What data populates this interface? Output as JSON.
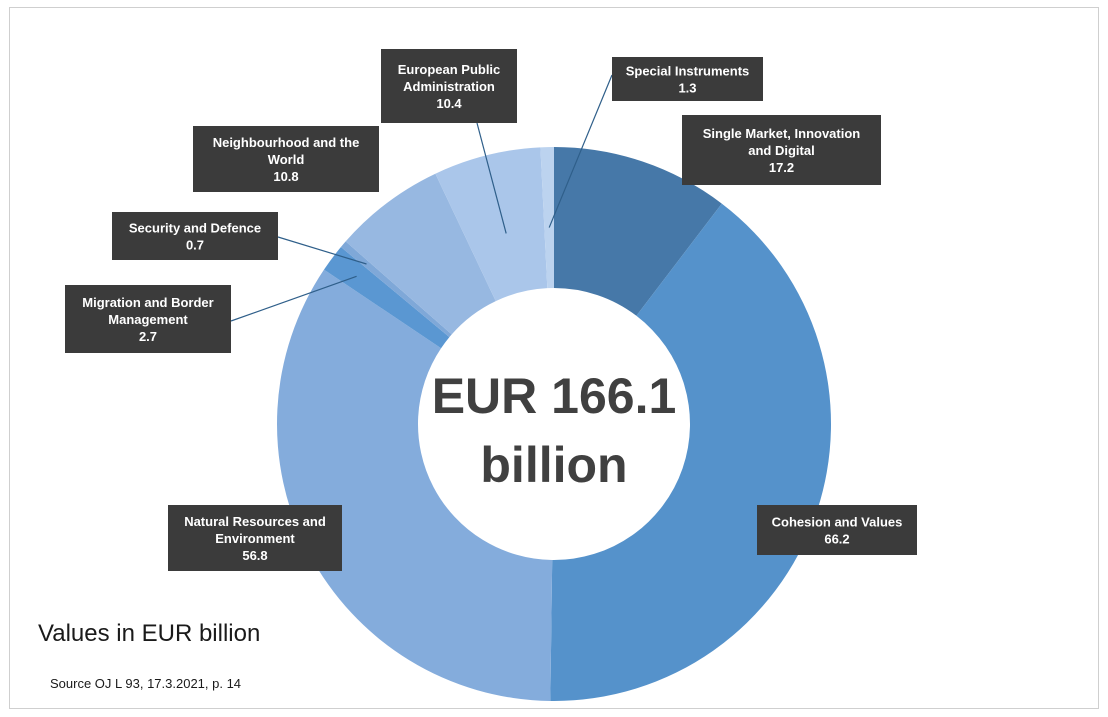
{
  "chart_data": {
    "type": "pie",
    "variant": "donut",
    "unit": "EUR billion",
    "center_label": [
      "EUR 166.1",
      "billion"
    ],
    "total": 166.1,
    "slices": [
      {
        "label": [
          "Single Market, Innovation",
          "and Digital"
        ],
        "value": 17.2,
        "color": "#4678a8"
      },
      {
        "label": [
          "Cohesion and Values"
        ],
        "value": 66.2,
        "color": "#5592cb"
      },
      {
        "label": [
          "Natural Resources and",
          "Environment"
        ],
        "value": 56.8,
        "color": "#84acdc"
      },
      {
        "label": [
          "Migration and Border",
          "Management"
        ],
        "value": 2.7,
        "color": "#5a97d2"
      },
      {
        "label": [
          "Security and Defence"
        ],
        "value": 0.7,
        "color": "#7fa8d8"
      },
      {
        "label": [
          "Neighbourhood and the",
          "World"
        ],
        "value": 10.8,
        "color": "#97b8e1"
      },
      {
        "label": [
          "European Public",
          "Administration"
        ],
        "value": 10.4,
        "color": "#aac6ea"
      },
      {
        "label": [
          "Special Instruments"
        ],
        "value": 1.3,
        "color": "#bcd3ef"
      }
    ],
    "legend": "none"
  },
  "notes": {
    "values_caption": "Values in EUR billion",
    "source": "Source OJ L 93, 17.3.2021, p. 14"
  }
}
